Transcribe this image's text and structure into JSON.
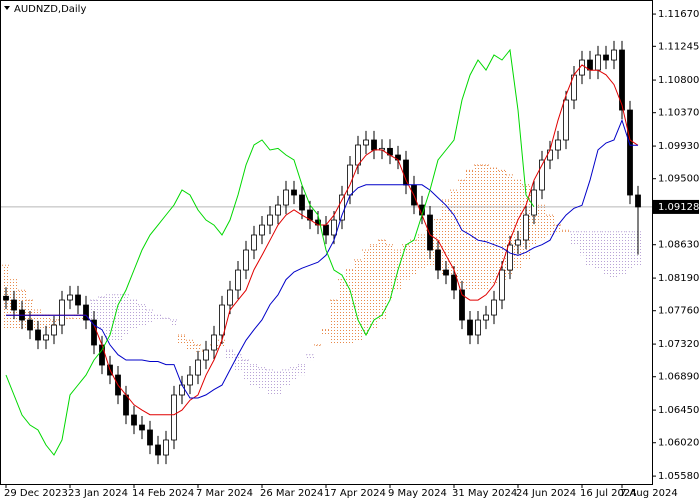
{
  "chart_data": {
    "type": "candlestick",
    "title": "AUDNZD,Daily",
    "categories": [
      "29 Dec 2023",
      null,
      null,
      null,
      null,
      null,
      null,
      null,
      "23 Jan 2024",
      null,
      null,
      null,
      null,
      null,
      null,
      null,
      "14 Feb 2024",
      null,
      null,
      null,
      null,
      null,
      null,
      null,
      "7 Mar 2024",
      null,
      null,
      null,
      null,
      null,
      null,
      null,
      "26 Mar 2024",
      null,
      null,
      null,
      null,
      null,
      null,
      null,
      "17 Apr 2024",
      null,
      null,
      null,
      null,
      null,
      null,
      null,
      "9 May 2024",
      null,
      null,
      null,
      null,
      null,
      null,
      null,
      "31 May 2024",
      null,
      null,
      null,
      null,
      null,
      null,
      null,
      "24 Jun 2024",
      null,
      null,
      null,
      null,
      null,
      null,
      null,
      "16 Jul 2024",
      null,
      null,
      null,
      null,
      "7 Aug 2024",
      null,
      null
    ],
    "open": [
      1.0795,
      1.07901,
      1.07769,
      1.07637,
      1.07506,
      1.07374,
      1.0744,
      1.07571,
      1.07901,
      1.07967,
      1.07835,
      1.07637,
      1.07308,
      1.07044,
      1.06912,
      1.06649,
      1.06385,
      1.06253,
      1.06188,
      1.0599,
      1.05858,
      1.06056,
      1.06649,
      1.06781,
      1.06912,
      1.0711,
      1.07242,
      1.0744,
      1.07835,
      1.08033,
      1.08296,
      1.0856,
      1.08758,
      1.08889,
      1.09021,
      1.09153,
      1.09351,
      1.09285,
      1.09087,
      1.08955,
      1.08889,
      1.08758,
      1.08955,
      1.09285,
      1.0968,
      1.09944,
      1.1001,
      1.09878,
      1.099,
      1.09812,
      1.09746,
      1.09417,
      1.09153,
      1.09021,
      1.0856,
      1.08296,
      1.0823,
      1.08033,
      1.07637,
      1.0744,
      1.07637,
      1.07703,
      1.07901,
      1.08296,
      1.08626,
      1.08692,
      1.09021,
      1.09351,
      1.09746,
      1.09878,
      1.1001,
      1.10537,
      1.10866,
      1.11064,
      1.10932,
      1.1113,
      1.11064,
      1.11196,
      1.10405,
      1.09285
    ],
    "high": [
      1.0807,
      1.08021,
      1.07889,
      1.07757,
      1.07626,
      1.0756,
      1.07691,
      1.08021,
      1.08087,
      1.08087,
      1.07955,
      1.07757,
      1.07428,
      1.07164,
      1.07032,
      1.06769,
      1.06505,
      1.06373,
      1.06308,
      1.0611,
      1.06176,
      1.06769,
      1.06901,
      1.07032,
      1.0723,
      1.07362,
      1.0756,
      1.07955,
      1.08153,
      1.08416,
      1.0868,
      1.08878,
      1.09009,
      1.09141,
      1.09273,
      1.09471,
      1.09471,
      1.09405,
      1.09207,
      1.09075,
      1.09009,
      1.09075,
      1.09405,
      1.098,
      1.10064,
      1.1013,
      1.1013,
      1.1002,
      1.1002,
      1.09932,
      1.09866,
      1.09537,
      1.09273,
      1.09141,
      1.0868,
      1.08416,
      1.0835,
      1.08153,
      1.07757,
      1.07757,
      1.07823,
      1.08021,
      1.08416,
      1.08746,
      1.08812,
      1.09141,
      1.09471,
      1.09866,
      1.09998,
      1.1013,
      1.10657,
      1.10986,
      1.11184,
      1.11184,
      1.1125,
      1.1125,
      1.11316,
      1.11316,
      1.10525,
      1.09405
    ],
    "low": [
      1.07781,
      1.07649,
      1.07517,
      1.07386,
      1.07254,
      1.07254,
      1.0732,
      1.07451,
      1.07781,
      1.07715,
      1.07517,
      1.07188,
      1.06924,
      1.06792,
      1.06529,
      1.06265,
      1.06133,
      1.06068,
      1.0587,
      1.05738,
      1.05738,
      1.05936,
      1.06529,
      1.06661,
      1.06792,
      1.0699,
      1.07122,
      1.0732,
      1.07715,
      1.07913,
      1.08176,
      1.0844,
      1.08638,
      1.08769,
      1.08901,
      1.09033,
      1.09165,
      1.08967,
      1.08835,
      1.08769,
      1.08638,
      1.08638,
      1.08835,
      1.09165,
      1.0956,
      1.09824,
      1.09758,
      1.09758,
      1.09692,
      1.09626,
      1.09297,
      1.09033,
      1.08901,
      1.0844,
      1.08176,
      1.0811,
      1.07913,
      1.07517,
      1.0732,
      1.0732,
      1.07517,
      1.07583,
      1.07781,
      1.08176,
      1.08506,
      1.08572,
      1.08901,
      1.09231,
      1.09626,
      1.09758,
      1.0989,
      1.10417,
      1.10746,
      1.10812,
      1.10812,
      1.10944,
      1.10944,
      1.10285,
      1.09165,
      1.085
    ],
    "close": [
      1.07901,
      1.07769,
      1.07637,
      1.07506,
      1.07374,
      1.0744,
      1.07571,
      1.07901,
      1.07967,
      1.07835,
      1.07637,
      1.07308,
      1.07044,
      1.06912,
      1.06649,
      1.06385,
      1.06253,
      1.06188,
      1.0599,
      1.05858,
      1.06056,
      1.06649,
      1.06781,
      1.06912,
      1.0711,
      1.07242,
      1.0744,
      1.07835,
      1.08033,
      1.08296,
      1.0856,
      1.08758,
      1.08889,
      1.09021,
      1.09153,
      1.09351,
      1.09285,
      1.09087,
      1.08955,
      1.08889,
      1.08758,
      1.08955,
      1.09285,
      1.0968,
      1.09944,
      1.1001,
      1.09878,
      1.099,
      1.09812,
      1.09746,
      1.09417,
      1.09153,
      1.09021,
      1.0856,
      1.08296,
      1.0823,
      1.08033,
      1.07637,
      1.0744,
      1.07637,
      1.07703,
      1.07901,
      1.08296,
      1.08626,
      1.08692,
      1.09021,
      1.09351,
      1.09746,
      1.09878,
      1.1001,
      1.10537,
      1.10866,
      1.11064,
      1.10932,
      1.1113,
      1.11064,
      1.11196,
      1.10405,
      1.09285,
      1.09128
    ],
    "color_up": "#ffffff",
    "color_down": "#000000",
    "lines": [
      {
        "color": "#e00000",
        "values": [
          1.077,
          1.077,
          1.077,
          1.077,
          1.077,
          1.077,
          1.077,
          1.077,
          1.077,
          1.077,
          1.077,
          1.0757,
          1.0731,
          1.0698,
          1.0678,
          1.0665,
          1.0652,
          1.0645,
          1.0639,
          1.0639,
          1.0639,
          1.0639,
          1.0645,
          1.0658,
          1.0665,
          1.0691,
          1.0711,
          1.0737,
          1.0777,
          1.079,
          1.0803,
          1.083,
          1.0849,
          1.0869,
          1.0889,
          1.0902,
          1.0909,
          1.0902,
          1.0896,
          1.0889,
          1.0889,
          1.0902,
          1.0922,
          1.0942,
          1.0968,
          1.0981,
          1.0988,
          1.0988,
          1.0981,
          1.0975,
          1.0948,
          1.0928,
          1.0902,
          1.0876,
          1.0869,
          1.0849,
          1.083,
          1.0797,
          1.079,
          1.079,
          1.0797,
          1.081,
          1.0836,
          1.0869,
          1.0896,
          1.0915,
          1.0948,
          1.0968,
          1.0988,
          1.1027,
          1.106,
          1.1087,
          1.11,
          1.1093,
          1.1093,
          1.1087,
          1.1074,
          1.1047,
          1.1001,
          1.0994
        ]
      },
      {
        "color": "#0000c8",
        "values": [
          1.077,
          1.077,
          1.077,
          1.077,
          1.077,
          1.077,
          1.077,
          1.077,
          1.077,
          1.077,
          1.077,
          1.0757,
          1.0751,
          1.0731,
          1.0718,
          1.0711,
          1.0711,
          1.0711,
          1.0709,
          1.0709,
          1.0705,
          1.0705,
          1.0678,
          1.0661,
          1.0661,
          1.0665,
          1.0672,
          1.0678,
          1.0698,
          1.0718,
          1.0737,
          1.0751,
          1.0764,
          1.0784,
          1.0797,
          1.0817,
          1.0827,
          1.0832,
          1.0836,
          1.084,
          1.0849,
          1.0869,
          1.0902,
          1.0928,
          1.0938,
          1.0942,
          1.0942,
          1.0942,
          1.0942,
          1.0942,
          1.0942,
          1.0942,
          1.0942,
          1.0935,
          1.0925,
          1.0915,
          1.0902,
          1.0882,
          1.0876,
          1.0869,
          1.0867,
          1.0863,
          1.0859,
          1.0852,
          1.0849,
          1.0853,
          1.0859,
          1.0863,
          1.0869,
          1.0889,
          1.0902,
          1.0911,
          1.0915,
          1.0948,
          1.0988,
          1.0997,
          1.1001,
          1.1027,
          1.0994,
          1.0994
        ]
      },
      {
        "color": "#00d800",
        "values": [
          1.06912,
          1.06649,
          1.06385,
          1.06253,
          1.06188,
          1.0599,
          1.05858,
          1.06056,
          1.06649,
          1.06781,
          1.06912,
          1.0711,
          1.07242,
          1.0744,
          1.07835,
          1.08033,
          1.08296,
          1.0856,
          1.08758,
          1.08889,
          1.09021,
          1.09153,
          1.09351,
          1.09285,
          1.09087,
          1.08955,
          1.08889,
          1.08758,
          1.08955,
          1.09285,
          1.0968,
          1.09944,
          1.1001,
          1.09878,
          1.099,
          1.09812,
          1.09746,
          1.09417,
          1.09153,
          1.09021,
          1.0856,
          1.08296,
          1.0823,
          1.08033,
          1.07637,
          1.0744,
          1.07637,
          1.07703,
          1.07901,
          1.08296,
          1.08626,
          1.08692,
          1.09021,
          1.09351,
          1.09746,
          1.09878,
          1.1001,
          1.10537,
          1.10866,
          1.11064,
          1.10932,
          1.1113,
          1.11064,
          1.11196,
          1.10405,
          1.09285,
          1.09128,
          null,
          null,
          null,
          null,
          null,
          null,
          null,
          null,
          null,
          null,
          null,
          null,
          null
        ]
      }
    ],
    "cloud": {
      "color_up": "#e8894a",
      "color_down": "#b9a3d6",
      "span_a": [
        1.0836,
        1.0817,
        1.0803,
        1.079,
        1.0777,
        1.077,
        1.0764,
        1.0764,
        1.0766,
        1.077,
        1.077,
        1.0764,
        1.0751,
        1.0737,
        1.0737,
        1.0744,
        1.0751,
        1.0757,
        1.0761,
        1.0764,
        1.0764,
        1.0757,
        1.0744,
        1.0737,
        1.0731,
        1.0724,
        1.0731,
        1.0737,
        1.0711,
        1.0698,
        1.0685,
        1.0678,
        1.0672,
        1.0665,
        1.0665,
        1.0678,
        1.0685,
        1.0691,
        1.0711,
        1.0731,
        1.0751,
        1.079,
        1.0817,
        1.083,
        1.0843,
        1.0856,
        1.0863,
        1.0869,
        1.0863,
        1.0856,
        1.0863,
        1.0869,
        1.0876,
        1.0882,
        1.0896,
        1.0922,
        1.0935,
        1.0948,
        1.0961,
        1.0968,
        1.0968,
        1.0964,
        1.0961,
        1.0955,
        1.0948,
        1.0942,
        1.0928,
        1.0915,
        1.0902,
        1.0889,
        1.0882,
        1.0863,
        1.0849,
        1.0836,
        1.083,
        1.0823,
        1.0819,
        1.0823,
        1.083,
        1.0836
      ],
      "span_b": [
        1.0751,
        1.0751,
        1.0751,
        1.0751,
        1.0751,
        1.0751,
        1.0757,
        1.0764,
        1.0764,
        1.0764,
        1.0764,
        1.079,
        1.0794,
        1.0797,
        1.0797,
        1.0797,
        1.079,
        1.0784,
        1.0777,
        1.077,
        1.0766,
        1.0764,
        1.0731,
        1.0724,
        1.0722,
        1.0722,
        1.0724,
        1.0727,
        1.0724,
        1.0718,
        1.0711,
        1.0705,
        1.0701,
        1.0698,
        1.0695,
        1.0698,
        1.0701,
        1.0705,
        1.0718,
        1.0731,
        1.0744,
        1.0731,
        1.0731,
        1.0731,
        1.0737,
        1.0744,
        1.0751,
        1.0764,
        1.079,
        1.0803,
        1.0817,
        1.0823,
        1.083,
        1.0836,
        1.083,
        1.0823,
        1.0817,
        1.081,
        1.0803,
        1.0803,
        1.0803,
        1.081,
        1.0817,
        1.0823,
        1.083,
        1.0843,
        1.0863,
        1.0869,
        1.0876,
        1.088,
        1.088,
        1.088,
        1.088,
        1.088,
        1.088,
        1.088,
        1.088,
        1.088,
        1.088,
        1.088
      ]
    },
    "last_price": 1.09128,
    "ylim": [
      1.05476,
      1.11829
    ],
    "yticks": [
      {
        "value": 1.1167,
        "label": "1.11670"
      },
      {
        "value": 1.11245,
        "label": "1.11245"
      },
      {
        "value": 1.108,
        "label": "1.10800"
      },
      {
        "value": 1.1037,
        "label": "1.10370"
      },
      {
        "value": 1.0993,
        "label": "1.09930"
      },
      {
        "value": 1.095,
        "label": "1.09500"
      },
      {
        "value": 1.0863,
        "label": "1.08630"
      },
      {
        "value": 1.0819,
        "label": "1.08190"
      },
      {
        "value": 1.0776,
        "label": "1.07760"
      },
      {
        "value": 1.0732,
        "label": "1.07320"
      },
      {
        "value": 1.0689,
        "label": "1.06890"
      },
      {
        "value": 1.0645,
        "label": "1.06450"
      },
      {
        "value": 1.0602,
        "label": "1.06020"
      },
      {
        "value": 1.0558,
        "label": "1.05580"
      }
    ]
  }
}
